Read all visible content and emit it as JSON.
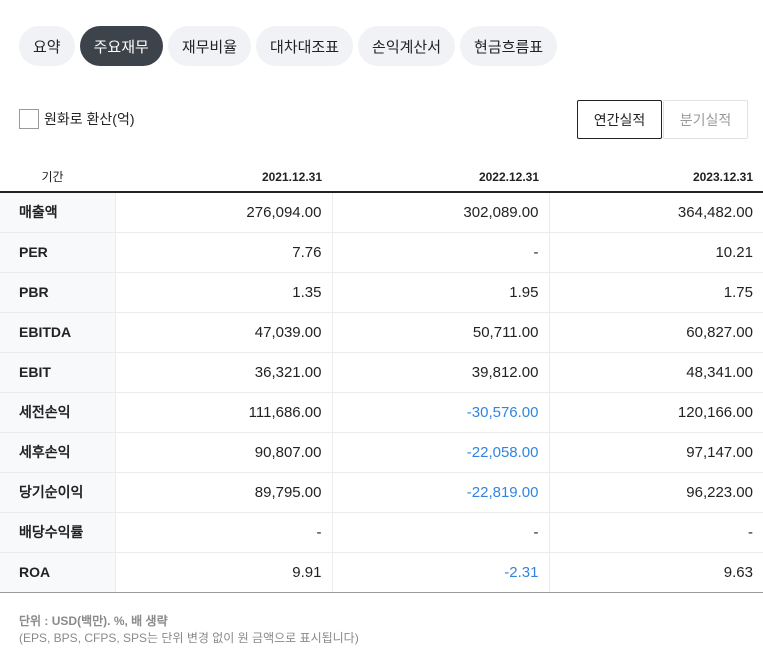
{
  "tabs": [
    {
      "label": "요약",
      "active": false
    },
    {
      "label": "주요재무",
      "active": true
    },
    {
      "label": "재무비율",
      "active": false
    },
    {
      "label": "대차대조표",
      "active": false
    },
    {
      "label": "손익계산서",
      "active": false
    },
    {
      "label": "현금흐름표",
      "active": false
    }
  ],
  "convert": {
    "label": "원화로 환산(억)",
    "checked": false
  },
  "period": {
    "annual_label": "연간실적",
    "quarter_label": "분기실적",
    "selected": "annual"
  },
  "table": {
    "header_label": "기간",
    "columns": [
      "2021.12.31",
      "2022.12.31",
      "2023.12.31"
    ],
    "rows": [
      {
        "label": "매출액",
        "values": [
          "276,094.00",
          "302,089.00",
          "364,482.00"
        ]
      },
      {
        "label": "PER",
        "values": [
          "7.76",
          "-",
          "10.21"
        ]
      },
      {
        "label": "PBR",
        "values": [
          "1.35",
          "1.95",
          "1.75"
        ]
      },
      {
        "label": "EBITDA",
        "values": [
          "47,039.00",
          "50,711.00",
          "60,827.00"
        ]
      },
      {
        "label": "EBIT",
        "values": [
          "36,321.00",
          "39,812.00",
          "48,341.00"
        ]
      },
      {
        "label": "세전손익",
        "values": [
          "111,686.00",
          "-30,576.00",
          "120,166.00"
        ]
      },
      {
        "label": "세후손익",
        "values": [
          "90,807.00",
          "-22,058.00",
          "97,147.00"
        ]
      },
      {
        "label": "당기순이익",
        "values": [
          "89,795.00",
          "-22,819.00",
          "96,223.00"
        ]
      },
      {
        "label": "배당수익률",
        "values": [
          "-",
          "-",
          "-"
        ]
      },
      {
        "label": "ROA",
        "values": [
          "9.91",
          "-2.31",
          "9.63"
        ]
      }
    ]
  },
  "colors": {
    "negative": "#3384e0",
    "active_tab_bg": "#3d434b"
  },
  "footnote": {
    "unit": "단위 : USD(백만). %, 배 생략",
    "note": "(EPS, BPS, CFPS, SPS는 단위 변경 없이 원 금액으로 표시됩니다)"
  }
}
